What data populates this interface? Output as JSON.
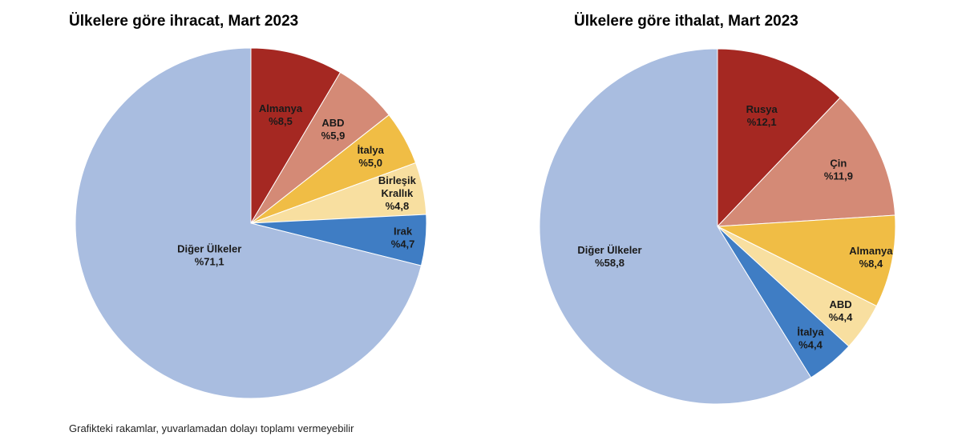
{
  "footnote": "Grafikteki rakamlar, yuvarlamadan dolayı toplamı vermeyebilir",
  "chart_data": [
    {
      "type": "pie",
      "title": "Ülkelere göre ihracat, Mart 2023",
      "slices": [
        {
          "label": [
            "Almanya"
          ],
          "value_text": "%8,5",
          "value": 8.5,
          "color": "#a52822"
        },
        {
          "label": [
            "ABD"
          ],
          "value_text": "%5,9",
          "value": 5.9,
          "color": "#d48a76"
        },
        {
          "label": [
            "İtalya"
          ],
          "value_text": "%5,0",
          "value": 5.0,
          "color": "#f0bd45"
        },
        {
          "label": [
            "Birleşik",
            "Krallık"
          ],
          "value_text": "%4,8",
          "value": 4.8,
          "color": "#f8dfa0"
        },
        {
          "label": [
            "Irak"
          ],
          "value_text": "%4,7",
          "value": 4.7,
          "color": "#3f7dc4"
        },
        {
          "label": [
            "Diğer Ülkeler"
          ],
          "value_text": "%71,1",
          "value": 71.1,
          "color": "#a9bde0"
        }
      ]
    },
    {
      "type": "pie",
      "title": "Ülkelere göre ithalat, Mart 2023",
      "slices": [
        {
          "label": [
            "Rusya"
          ],
          "value_text": "%12,1",
          "value": 12.1,
          "color": "#a52822"
        },
        {
          "label": [
            "Çin"
          ],
          "value_text": "%11,9",
          "value": 11.9,
          "color": "#d48a76"
        },
        {
          "label": [
            "Almanya"
          ],
          "value_text": "%8,4",
          "value": 8.4,
          "color": "#f0bd45"
        },
        {
          "label": [
            "ABD"
          ],
          "value_text": "%4,4",
          "value": 4.4,
          "color": "#f8dfa0"
        },
        {
          "label": [
            "İtalya"
          ],
          "value_text": "%4,4",
          "value": 4.4,
          "color": "#3f7dc4"
        },
        {
          "label": [
            "Diğer Ülkeler"
          ],
          "value_text": "%58,8",
          "value": 58.8,
          "color": "#a9bde0"
        }
      ]
    }
  ]
}
